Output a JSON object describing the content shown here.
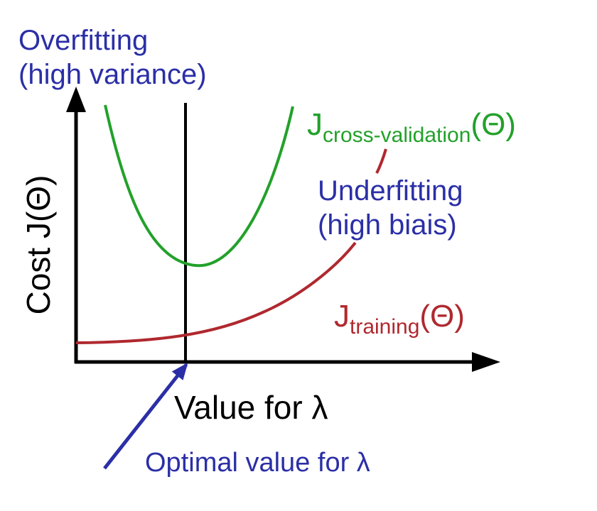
{
  "colors": {
    "axis": "#000000",
    "cv_curve": "#22a12a",
    "training_curve": "#b0282f",
    "annotation": "#2b2fa6",
    "background": "#ffffff"
  },
  "labels": {
    "overfitting_line1": "Overfitting",
    "overfitting_line2": "(high variance)",
    "underfitting_line1": "Underfitting",
    "underfitting_line2": "(high biais)",
    "y_axis": "Cost J(Θ)",
    "x_axis": "Value for λ",
    "optimal": "Optimal value for λ"
  },
  "curves": {
    "cv": {
      "main": "J",
      "sub": "cross-validation",
      "tail": "(Θ)"
    },
    "training": {
      "main": "J",
      "sub": "training",
      "tail": "(Θ)"
    }
  }
}
